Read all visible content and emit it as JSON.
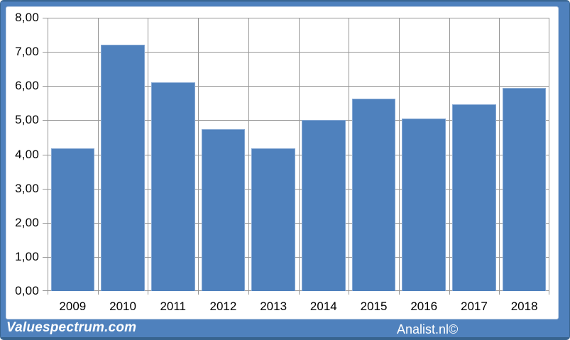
{
  "footer": {
    "left_text": "Valuespectrum.com",
    "right_text": "Analist.nl©"
  },
  "colors": {
    "frame_blue": "#4f81bd",
    "frame_edge_dark": "#38648f",
    "inner_edge_light": "#ccd8e8",
    "plot_background": "#ffffff",
    "gridline": "#969696",
    "bar_fill": "#4f81bd",
    "bar_border": "#84a7d3",
    "axis_text": "#000000",
    "footer_text": "#ffffff"
  },
  "chart_data": {
    "type": "bar",
    "title": "",
    "xlabel": "",
    "ylabel": "",
    "categories": [
      "2009",
      "2010",
      "2011",
      "2012",
      "2013",
      "2014",
      "2015",
      "2016",
      "2017",
      "2018"
    ],
    "values": [
      4.17,
      7.21,
      6.1,
      4.73,
      4.17,
      5.0,
      5.63,
      5.05,
      5.47,
      5.95
    ],
    "ylim": [
      0,
      8
    ],
    "ytick_step": 1,
    "ytick_labels": [
      "0,00",
      "1,00",
      "2,00",
      "3,00",
      "4,00",
      "5,00",
      "6,00",
      "7,00",
      "8,00"
    ],
    "grid": true,
    "legend": "none",
    "decimal_format": "comma"
  }
}
